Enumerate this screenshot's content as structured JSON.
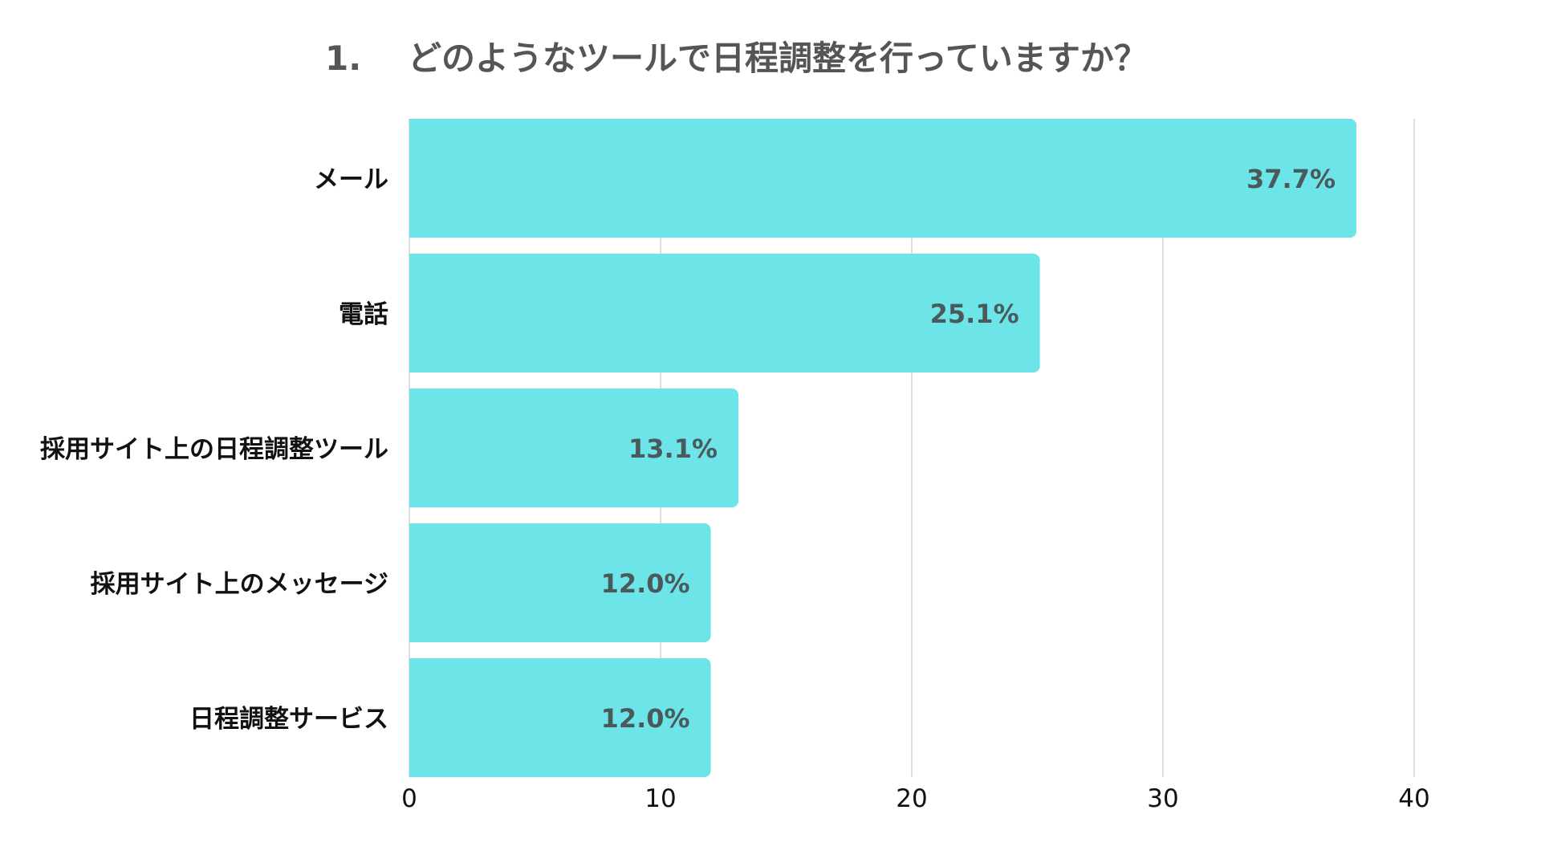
{
  "title": {
    "number": "1.",
    "text": "どのようなツールで日程調整を行っていますか？"
  },
  "colors": {
    "bar": "#6ce4e8",
    "grid": "#d4d4d4",
    "value_label": "#4a5a5a",
    "category_label": "#111111",
    "tick_label": "#111111",
    "title": "#555555"
  },
  "chart_data": {
    "type": "bar",
    "orientation": "horizontal",
    "title": "どのようなツールで日程調整を行っていますか？",
    "categories": [
      "メール",
      "電話",
      "採用サイト上の日程調整ツール",
      "採用サイト上のメッセージ",
      "日程調整サービス"
    ],
    "values": [
      37.7,
      25.1,
      13.1,
      12.0,
      12.0
    ],
    "value_labels": [
      "37.7%",
      "25.1%",
      "13.1%",
      "12.0%",
      "12.0%"
    ],
    "xlim": [
      0,
      40
    ],
    "xticks": [
      0,
      10,
      20,
      30,
      40
    ],
    "xlabel": "",
    "ylabel": "",
    "grid": true
  }
}
